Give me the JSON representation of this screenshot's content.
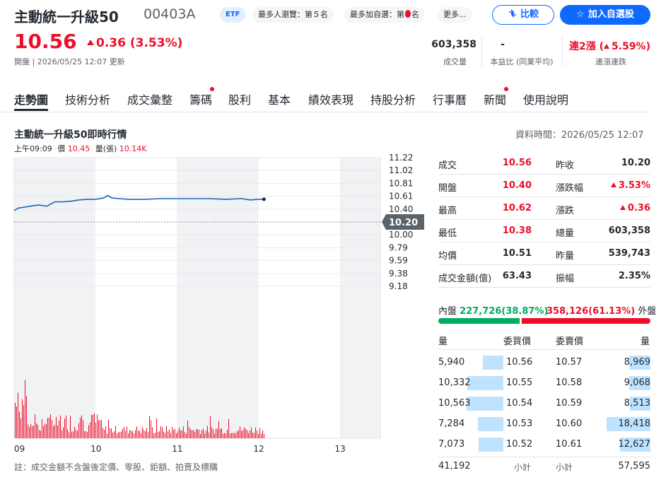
{
  "header": {
    "name": "主動統一升級50",
    "code": "00403A",
    "etf_tag": "ETF",
    "tag_views": "最多人瀏覽：第５名",
    "tag_watch_prefix": "最多加自選：第",
    "tag_watch_suffix": "名",
    "tag_more": "更多...",
    "compare_label": "比較",
    "add_label": "加入自選股"
  },
  "quote": {
    "price": "10.56",
    "change": "0.36 (3.53%)",
    "status": "開盤 | 2026/05/25 12:07 更新",
    "stats": [
      {
        "value": "603,358",
        "label": "成交量"
      },
      {
        "value": "-",
        "label": "本益比 (同業平均)"
      },
      {
        "value_prefix": "連2漲 (",
        "value_pct": "5.59%",
        "value_suffix": ")",
        "label": "連漲連跌"
      }
    ]
  },
  "tabs": [
    "走勢圖",
    "技術分析",
    "成交彙整",
    "籌碼",
    "股利",
    "基本",
    "績效表現",
    "持股分析",
    "行事曆",
    "新聞",
    "使用說明"
  ],
  "chart_header": {
    "title": "主動統一升級50即時行情",
    "data_time": "資料時間：2026/05/25 12:07",
    "hover_time": "上午09:09",
    "hover_price_label": "價",
    "hover_price": "10.45",
    "hover_vol_label": "量(張)",
    "hover_vol": "10.14K"
  },
  "chart_data": {
    "type": "line",
    "x_ticks": [
      "09",
      "10",
      "11",
      "12",
      "13"
    ],
    "y_ticks": [
      "11.22",
      "11.02",
      "10.81",
      "10.61",
      "10.40",
      "10.20",
      "10.00",
      "9.79",
      "9.59",
      "9.38",
      "9.18"
    ],
    "prev_close": 10.2,
    "prev_close_label": "10.20",
    "ylim": [
      9.18,
      11.22
    ],
    "series": [
      {
        "x": [
          9.0,
          9.05,
          9.1,
          9.2,
          9.3,
          9.4,
          9.5,
          9.6,
          9.7,
          9.8,
          9.9,
          10.0,
          10.1,
          10.15,
          10.2,
          10.3,
          10.4,
          10.6,
          10.8,
          11.0,
          11.2,
          11.4,
          11.6,
          11.8,
          11.9,
          12.0,
          12.07
        ],
        "y": [
          10.38,
          10.42,
          10.43,
          10.45,
          10.47,
          10.45,
          10.52,
          10.52,
          10.53,
          10.55,
          10.56,
          10.56,
          10.58,
          10.62,
          10.58,
          10.57,
          10.56,
          10.56,
          10.57,
          10.57,
          10.57,
          10.57,
          10.56,
          10.57,
          10.55,
          10.56,
          10.56
        ]
      }
    ]
  },
  "quote_table": [
    {
      "l_label": "成交",
      "l_value": "10.56",
      "l_color": "#eb0f29",
      "r_label": "昨收",
      "r_value": "10.20",
      "r_color": "#232a31"
    },
    {
      "l_label": "開盤",
      "l_value": "10.40",
      "l_color": "#eb0f29",
      "r_label": "漲跌幅",
      "r_value": "3.53%",
      "r_color": "#eb0f29"
    },
    {
      "l_label": "最高",
      "l_value": "10.62",
      "l_color": "#eb0f29",
      "r_label": "漲跌",
      "r_value": "0.36",
      "r_color": "#eb0f29"
    },
    {
      "l_label": "最低",
      "l_value": "10.38",
      "l_color": "#eb0f29",
      "r_label": "總量",
      "r_value": "603,358",
      "r_color": "#232a31"
    },
    {
      "l_label": "均價",
      "l_value": "10.51",
      "l_color": "#232a31",
      "r_label": "昨量",
      "r_value": "539,743",
      "r_color": "#232a31"
    },
    {
      "l_label": "成交金額(億)",
      "l_value": "63.43",
      "l_color": "#232a31",
      "r_label": "振幅",
      "r_value": "2.35%",
      "r_color": "#232a31"
    }
  ],
  "inout": {
    "in_label": "內盤",
    "in_value": "227,726(38.87%)",
    "out_value": "358,126(61.13%)",
    "out_label": "外盤",
    "in_ratio": 0.3887
  },
  "orderbook": {
    "headers": {
      "bid_vol": "量",
      "bid_price": "委買價",
      "ask_price": "委賣價",
      "ask_vol": "量"
    },
    "bids": [
      {
        "vol": "5,940",
        "price": "10.56",
        "ratio": 0.56
      },
      {
        "vol": "10,332",
        "price": "10.55",
        "ratio": 0.98
      },
      {
        "vol": "10,563",
        "price": "10.54",
        "ratio": 1.0
      },
      {
        "vol": "7,284",
        "price": "10.53",
        "ratio": 0.69
      },
      {
        "vol": "7,073",
        "price": "10.52",
        "ratio": 0.67
      }
    ],
    "asks": [
      {
        "price": "10.57",
        "vol": "8,969",
        "ratio": 0.49
      },
      {
        "price": "10.58",
        "vol": "9,068",
        "ratio": 0.49
      },
      {
        "price": "10.59",
        "vol": "8,513",
        "ratio": 0.46
      },
      {
        "price": "10.60",
        "vol": "18,418",
        "ratio": 1.0
      },
      {
        "price": "10.61",
        "vol": "12,627",
        "ratio": 0.69
      }
    ],
    "bid_total": "41,192",
    "bid_total_label": "小計",
    "ask_total_label": "小計",
    "ask_total": "57,595"
  },
  "note": "註：成交金額不含盤後定價、零股、鉅額、拍賣及標購",
  "colors": {
    "up": "#eb0f29",
    "down": "#00ab5e",
    "accent": "#0f69ff",
    "line": "#1a64b8",
    "vol": "#eb0f29"
  }
}
